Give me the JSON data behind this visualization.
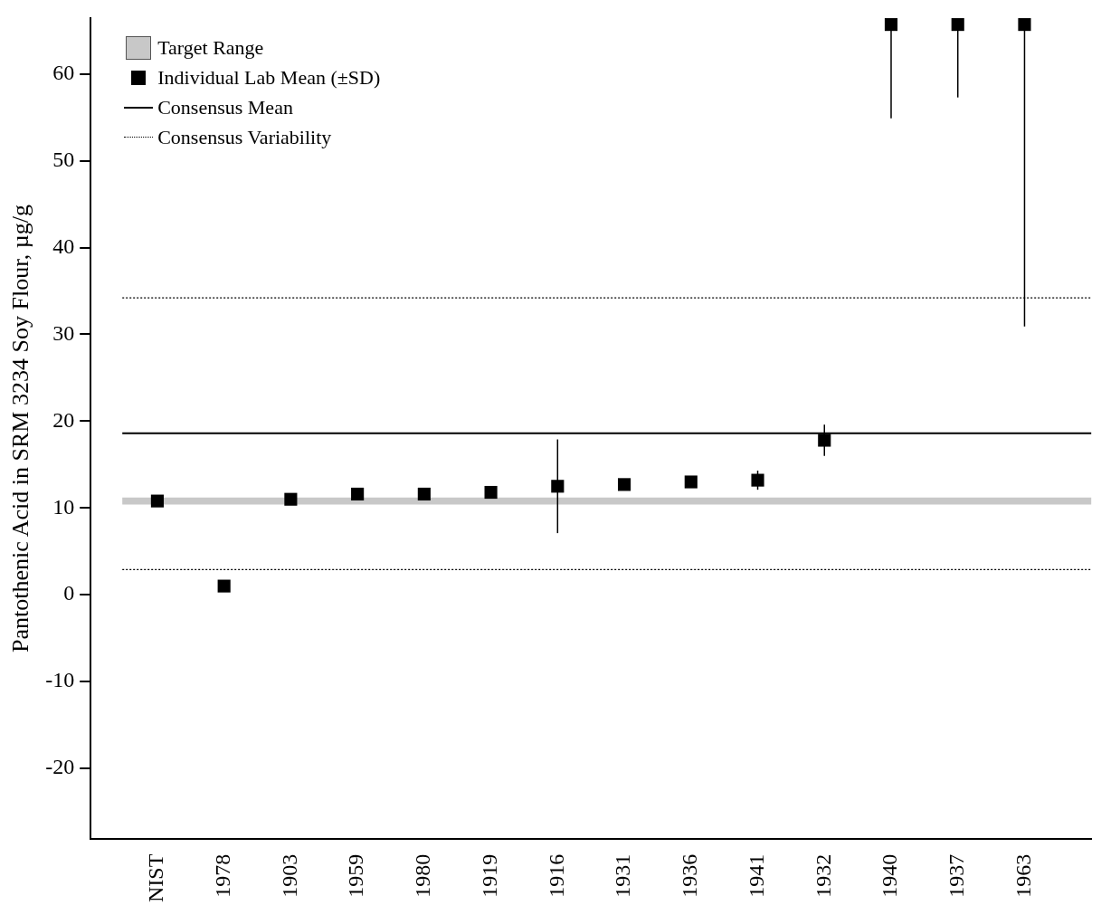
{
  "chart_data": {
    "type": "scatter",
    "ylabel": "Pantothenic Acid in SRM 3234 Soy Flour, µg/g",
    "categories": [
      null,
      "NIST",
      "1978",
      "1903",
      "1959",
      "1980",
      "1919",
      "1916",
      "1931",
      "1936",
      "1941",
      "1932",
      "1940",
      "1937",
      "1963",
      null
    ],
    "series": [
      {
        "name": "Individual Lab Mean (±SD)",
        "color": "#000000",
        "values": [
          null,
          10.8,
          1.0,
          11.0,
          11.6,
          11.6,
          11.8,
          12.5,
          12.7,
          13.0,
          13.2,
          17.8,
          65.7,
          65.7,
          65.7,
          null
        ],
        "errors": [
          null,
          null,
          null,
          null,
          null,
          null,
          null,
          [
            7.1,
            17.9
          ],
          null,
          null,
          [
            12.1,
            14.3
          ],
          [
            16.0,
            19.6
          ],
          [
            54.9,
            65.7
          ],
          [
            57.3,
            65.7
          ],
          [
            30.9,
            65.7
          ],
          null
        ]
      }
    ],
    "marker": "square",
    "ylim": [
      -28.1,
      66.4
    ],
    "yticks": [
      -20,
      -10,
      0,
      10,
      20,
      30,
      40,
      50,
      60
    ],
    "bands": [
      {
        "axis": "y",
        "from": 10.4,
        "to": 11.2,
        "label": "Target Range",
        "color": "#c8c8c8"
      }
    ],
    "ref_lines": [
      {
        "axis": "y",
        "value": 18.6,
        "label": "Consensus Mean",
        "color": "#000000",
        "line_style": "solid"
      },
      {
        "axis": "y",
        "value": 34.2,
        "label": "Consensus Variability",
        "color": "#000000",
        "line_style": "dotted"
      },
      {
        "axis": "y",
        "value": 2.9,
        "color": "#000000",
        "line_style": "dotted"
      }
    ],
    "legend": "top left",
    "grid": false
  }
}
